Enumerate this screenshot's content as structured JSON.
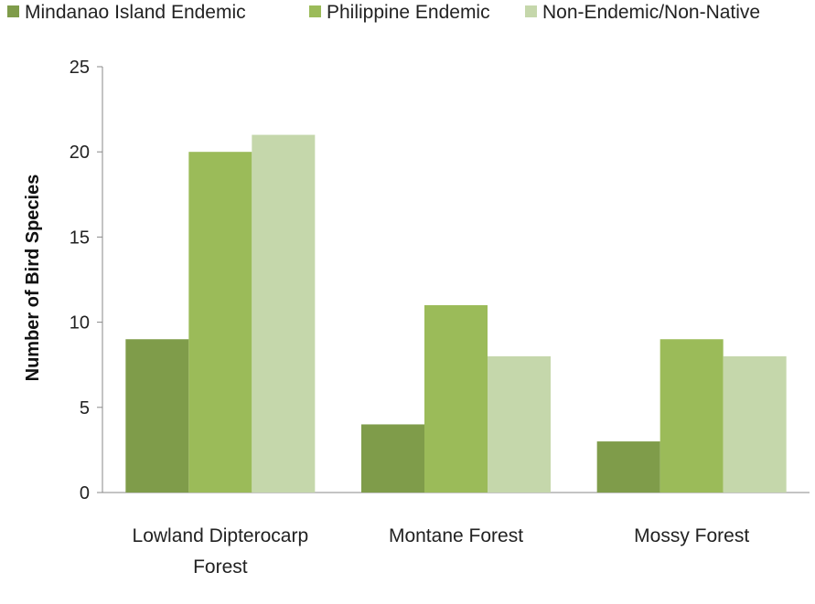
{
  "chart_data": {
    "type": "bar",
    "categories": [
      [
        "Lowland Dipterocarp",
        "Forest"
      ],
      [
        "Montane Forest"
      ],
      [
        "Mossy Forest"
      ]
    ],
    "series": [
      {
        "name": "Mindanao Island Endemic",
        "values": [
          9,
          4,
          3
        ],
        "color": "#7f9c4a"
      },
      {
        "name": "Philippine Endemic",
        "values": [
          20,
          11,
          9
        ],
        "color": "#9bbb59"
      },
      {
        "name": "Non-Endemic/Non-Native",
        "values": [
          21,
          8,
          8
        ],
        "color": "#c5d7ab"
      }
    ],
    "ylabel": "Number of Bird Species",
    "ylim": [
      0,
      25
    ],
    "yticks": [
      0,
      5,
      10,
      15,
      20,
      25
    ],
    "grid": false,
    "legend_position": "top"
  }
}
